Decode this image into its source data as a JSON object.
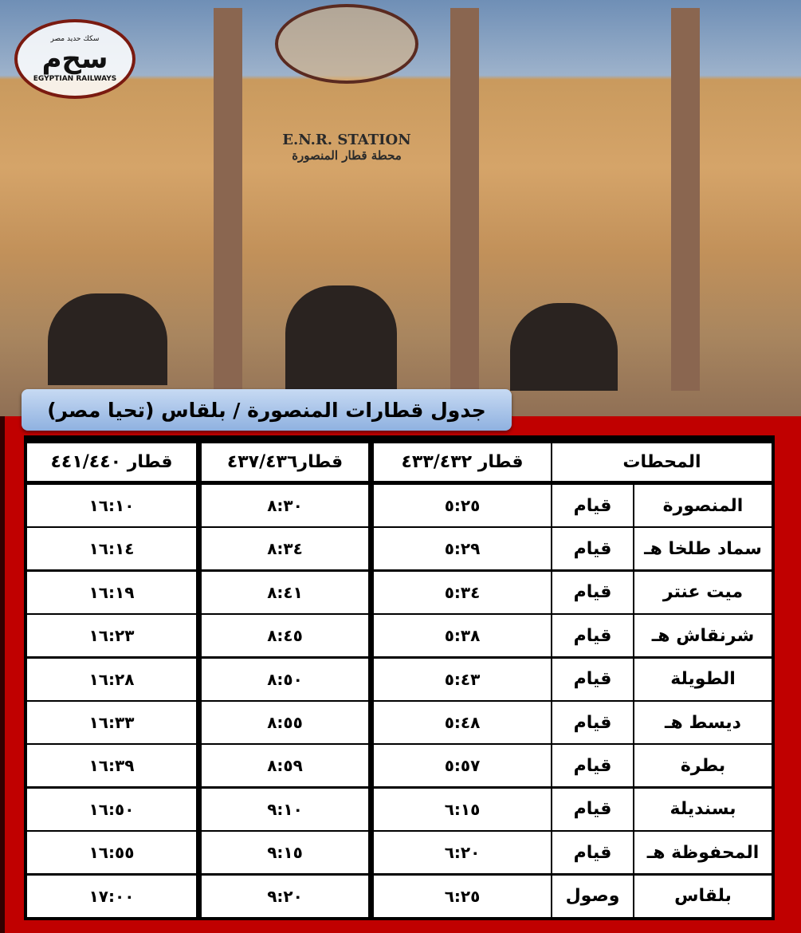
{
  "logo": {
    "arabic": "سكك حديد مصر",
    "english": "EGYPTIAN RAILWAYS"
  },
  "building_sign": {
    "english": "E.N.R. STATION",
    "arabic": "محطة قطار المنصورة"
  },
  "title": "جدول قطارات المنصورة / بلقاس (تحيا مصر)",
  "headers": {
    "stations": "المحطات",
    "train1": "قطار ٤٣٣/٤٣٢",
    "train2": "قطار٤٣٧/٤٣٦",
    "train3": "قطار ٤٤١/٤٤٠"
  },
  "rows": [
    {
      "station": "المنصورة",
      "status": "قيام",
      "t1": "٥:٢٥",
      "t2": "٨:٣٠",
      "t3": "١٦:١٠"
    },
    {
      "station": "سماد طلخا هـ",
      "status": "قيام",
      "t1": "٥:٢٩",
      "t2": "٨:٣٤",
      "t3": "١٦:١٤"
    },
    {
      "station": "ميت عنتر",
      "status": "قيام",
      "t1": "٥:٣٤",
      "t2": "٨:٤١",
      "t3": "١٦:١٩"
    },
    {
      "station": "شرنقاش هـ",
      "status": "قيام",
      "t1": "٥:٣٨",
      "t2": "٨:٤٥",
      "t3": "١٦:٢٣"
    },
    {
      "station": "الطويلة",
      "status": "قيام",
      "t1": "٥:٤٣",
      "t2": "٨:٥٠",
      "t3": "١٦:٢٨"
    },
    {
      "station": "ديسط هـ",
      "status": "قيام",
      "t1": "٥:٤٨",
      "t2": "٨:٥٥",
      "t3": "١٦:٣٣"
    },
    {
      "station": "بطرة",
      "status": "قيام",
      "t1": "٥:٥٧",
      "t2": "٨:٥٩",
      "t3": "١٦:٣٩"
    },
    {
      "station": "بسنديلة",
      "status": "قيام",
      "t1": "٦:١٥",
      "t2": "٩:١٠",
      "t3": "١٦:٥٠"
    },
    {
      "station": "المحفوظة هـ",
      "status": "قيام",
      "t1": "٦:٢٠",
      "t2": "٩:١٥",
      "t3": "١٦:٥٥"
    },
    {
      "station": "بلقاس",
      "status": "وصول",
      "t1": "٦:٢٥",
      "t2": "٩:٢٠",
      "t3": "١٧:٠٠"
    }
  ],
  "colors": {
    "background": "#c00000",
    "banner": "#a9c5eb"
  }
}
